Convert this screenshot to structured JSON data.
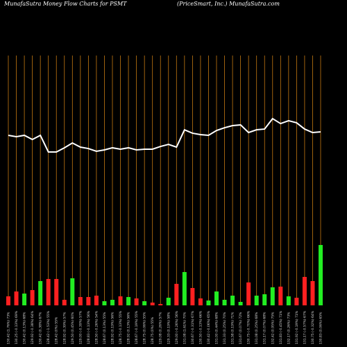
{
  "chart_data": {
    "type": "money-flow",
    "title": "MunafaSutra  Money Flow  Charts for PSMT",
    "subtitle": "(PriceSmart,  Inc.) MunafaSutra.com",
    "categories": [
      "130.42 (1.76%) 73%",
      "130.25 (-0.13%) 69%",
      "130.42 (0.13%) 68%",
      "129.92 (-0.38%) 64%",
      "130.42 (0.38%) 67%",
      "128.42 (-1.53%) 55%",
      "128.42 (0%) 55%",
      "128.92 (0.39%) 57%",
      "129.50 (0.45%) 60%",
      "129.00 (-0.39%) 57%",
      "128.83 (-0.13%) 56%",
      "128.50 (-0.26%) 54%",
      "128.67 (0.13%) 55%",
      "128.92 (0.19%) 56%",
      "128.75 (-0.13%) 55%",
      "128.92 (0.13%) 56%",
      "128.67 (-0.19%) 55%",
      "128.75 (0.06%) 55%",
      "128.75 (0%) 55%",
      "129.08 (0.26%) 57%",
      "129.33 (0.19%) 58%",
      "129.00 (-0.26%) 56%",
      "131.08 (1.61%) 70%",
      "130.67 (-0.31%) 67%",
      "130.50 (-0.13%) 66%",
      "130.42 (-0.06%) 65%",
      "131.00 (0.44%) 68%",
      "131.33 (0.25%) 70%",
      "131.58 (0.19%) 71%",
      "131.67 (0.07%) 72%",
      "130.75 (-0.70%) 66%",
      "131.08 (0.25%) 68%",
      "131.17 (0.07%) 68%",
      "132.42 (0.95%) 75%",
      "131.83 (-0.45%) 71%",
      "132.17 (0.26%) 73%",
      "131.92 (-0.19%) 71%",
      "131.17 (-0.57%) 67%",
      "130.75 (-0.32%) 64%",
      "130.83 (0.06%) 65%"
    ],
    "price": [
      130.42,
      130.25,
      130.42,
      129.92,
      130.42,
      128.42,
      128.42,
      128.92,
      129.5,
      129,
      128.83,
      128.5,
      128.67,
      128.92,
      128.75,
      128.92,
      128.67,
      128.75,
      128.75,
      129.08,
      129.33,
      129,
      131.08,
      130.67,
      130.5,
      130.42,
      131,
      131.33,
      131.58,
      131.67,
      130.75,
      131.08,
      131.17,
      132.42,
      131.83,
      132.17,
      131.92,
      131.17,
      130.75,
      130.83
    ],
    "price_color": "#ffffff",
    "ylim": [
      110,
      140
    ],
    "flow": [
      13,
      20,
      17,
      22,
      35,
      38,
      38,
      8,
      39,
      12,
      12,
      14,
      6,
      8,
      13,
      12,
      10,
      6,
      4,
      2,
      11,
      31,
      48,
      25,
      10,
      7,
      20,
      8,
      14,
      5,
      33,
      14,
      16,
      26,
      27,
      13,
      11,
      41,
      35,
      87
    ],
    "flow_colors": [
      "#ff2020",
      "#ff2020",
      "#22ee22",
      "#ff2020",
      "#22ee22",
      "#ff2020",
      "#ff2020",
      "#ff2020",
      "#22ee22",
      "#ff2020",
      "#ff2020",
      "#ff2020",
      "#22ee22",
      "#22ee22",
      "#ff2020",
      "#22ee22",
      "#ff2020",
      "#22ee22",
      "#ff2020",
      "#ff2020",
      "#22ee22",
      "#ff2020",
      "#22ee22",
      "#ff2020",
      "#ff2020",
      "#22ee22",
      "#22ee22",
      "#22ee22",
      "#22ee22",
      "#22ee22",
      "#ff2020",
      "#22ee22",
      "#22ee22",
      "#22ee22",
      "#ff2020",
      "#22ee22",
      "#ff2020",
      "#ff2020",
      "#ff2020",
      "#22ee22"
    ],
    "flow_lim": [
      0,
      360
    ],
    "grid_color": "#c67a12"
  }
}
